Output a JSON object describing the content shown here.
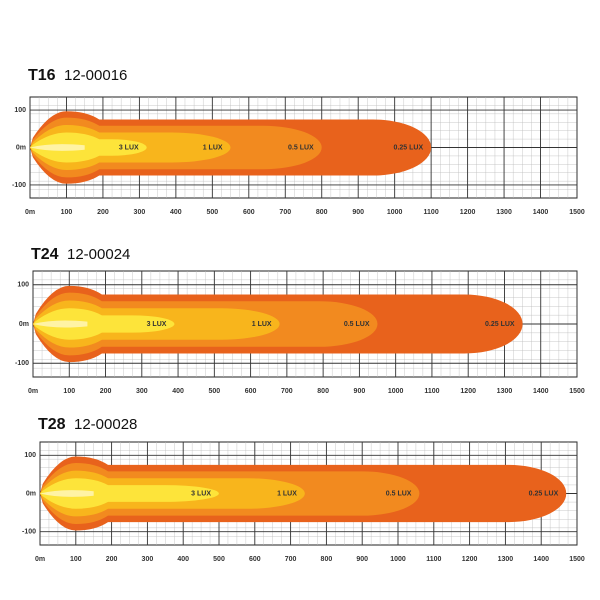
{
  "chart_data": [
    {
      "type": "beam",
      "title": "T16",
      "subtitle": "12-00016",
      "categories": [
        "3 LUX",
        "1 LUX",
        "0.5 LUX",
        "0.25 LUX"
      ],
      "values": [
        320,
        550,
        800,
        1100
      ],
      "half_widths": [
        22,
        40,
        58,
        75
      ],
      "colors": [
        "#fde43a",
        "#f8b51c",
        "#f28a1f",
        "#e8621c"
      ],
      "xlim": [
        0,
        1500
      ],
      "ylim": [
        -135,
        135
      ],
      "xticks": [
        {
          "value": 0,
          "label": "0m"
        },
        100,
        200,
        300,
        400,
        500,
        600,
        700,
        800,
        900,
        1000,
        1100,
        1200,
        1300,
        1400,
        1500
      ],
      "yticks": [
        100,
        {
          "value": 0,
          "label": "0m"
        },
        -100
      ],
      "grid": true
    },
    {
      "type": "beam",
      "title": "T24",
      "subtitle": "12-00024",
      "categories": [
        "3 LUX",
        "1 LUX",
        "0.5 LUX",
        "0.25 LUX"
      ],
      "values": [
        390,
        680,
        950,
        1350
      ],
      "half_widths": [
        22,
        40,
        58,
        75
      ],
      "colors": [
        "#fde43a",
        "#f8b51c",
        "#f28a1f",
        "#e8621c"
      ],
      "xlim": [
        0,
        1500
      ],
      "ylim": [
        -135,
        135
      ],
      "xticks": [
        {
          "value": 0,
          "label": "0m"
        },
        100,
        200,
        300,
        400,
        500,
        600,
        700,
        800,
        900,
        1000,
        1100,
        1200,
        1300,
        1400,
        1500
      ],
      "yticks": [
        100,
        {
          "value": 0,
          "label": "0m"
        },
        -100
      ],
      "grid": true
    },
    {
      "type": "beam",
      "title": "T28",
      "subtitle": "12-00028",
      "categories": [
        "3 LUX",
        "1 LUX",
        "0.5 LUX",
        "0.25 LUX"
      ],
      "values": [
        500,
        740,
        1060,
        1470
      ],
      "half_widths": [
        22,
        40,
        58,
        75
      ],
      "colors": [
        "#fde43a",
        "#f8b51c",
        "#f28a1f",
        "#e8621c"
      ],
      "xlim": [
        0,
        1500
      ],
      "ylim": [
        -135,
        135
      ],
      "xticks": [
        {
          "value": 0,
          "label": "0m"
        },
        100,
        200,
        300,
        400,
        500,
        600,
        700,
        800,
        900,
        1000,
        1100,
        1200,
        1300,
        1400,
        1500
      ],
      "yticks": [
        100,
        {
          "value": 0,
          "label": "0m"
        },
        -100
      ],
      "grid": true
    }
  ]
}
